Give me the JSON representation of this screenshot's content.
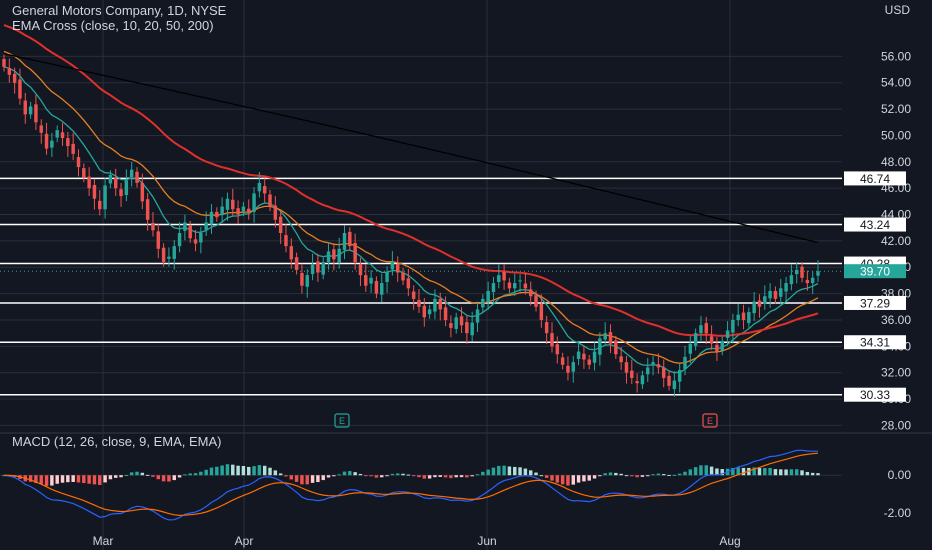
{
  "header": {
    "title": "General Motors Company, 1D, NYSE",
    "indicator": "EMA Cross (close, 10, 20, 50, 200)",
    "currency": "USD"
  },
  "macd_header": "MACD (12, 26, close, 9, EMA, EMA)",
  "colors": {
    "background": "#131722",
    "grid": "#2a2e39",
    "up": "#26a69a",
    "down": "#ef5350",
    "ema10": "#26a69a",
    "ema20": "#e67e22",
    "ema50": "#e0302b",
    "ema200": "#000000",
    "hline": "#ffffff",
    "macd": "#2962ff",
    "signal": "#ff6d00"
  },
  "earnings_markers": [
    {
      "label": "E",
      "date": "Apr 25",
      "color": "#26a69a"
    },
    {
      "label": "E",
      "date": "Jul 26",
      "color": "#ef5350"
    }
  ],
  "chart_data": [
    {
      "type": "candlestick",
      "price_axis": {
        "ylim": [
          27.5,
          58.0
        ],
        "ticks": [
          "28.00",
          "30.00",
          "32.00",
          "34.00",
          "36.00",
          "38.00",
          "40.00",
          "42.00",
          "44.00",
          "46.00",
          "48.00",
          "50.00",
          "52.00",
          "54.00",
          "56.00"
        ]
      },
      "x_axis": {
        "tick_labels": [
          "Mar",
          "Apr",
          "Jun",
          "Aug"
        ]
      },
      "horizontal_levels": [
        {
          "value": 46.74,
          "label": "46.74"
        },
        {
          "value": 43.24,
          "label": "43.24"
        },
        {
          "value": 40.28,
          "label": "40.28"
        },
        {
          "value": 37.29,
          "label": "37.29"
        },
        {
          "value": 34.31,
          "label": "34.31"
        },
        {
          "value": 30.33,
          "label": "30.33"
        }
      ],
      "last_price": {
        "value": 39.7,
        "label": "39.70"
      },
      "close_series": [
        55.2,
        54.6,
        54.0,
        52.8,
        51.6,
        52.2,
        51.0,
        50.2,
        49.0,
        49.6,
        50.4,
        49.8,
        49.2,
        48.6,
        47.6,
        46.8,
        46.0,
        45.2,
        44.4,
        46.2,
        47.0,
        46.0,
        45.4,
        46.6,
        47.4,
        46.4,
        45.0,
        43.6,
        42.8,
        41.4,
        40.4,
        40.8,
        41.6,
        42.6,
        43.4,
        42.2,
        41.8,
        42.6,
        43.4,
        44.2,
        43.8,
        44.6,
        45.2,
        44.4,
        44.0,
        44.6,
        44.2,
        45.6,
        46.4,
        45.6,
        44.6,
        43.6,
        42.6,
        41.6,
        40.6,
        39.8,
        38.6,
        39.4,
        40.2,
        39.6,
        40.4,
        41.2,
        40.6,
        41.4,
        42.6,
        41.6,
        40.4,
        39.4,
        38.6,
        39.2,
        38.0,
        38.8,
        39.6,
        40.4,
        39.6,
        39.0,
        38.4,
        37.6,
        37.0,
        36.2,
        36.8,
        37.6,
        36.8,
        36.0,
        35.4,
        36.2,
        35.6,
        35.0,
        35.8,
        36.8,
        37.6,
        38.2,
        38.8,
        39.4,
        39.0,
        38.4,
        38.8,
        39.0,
        38.4,
        37.8,
        37.0,
        36.0,
        35.0,
        34.0,
        33.4,
        32.6,
        32.0,
        32.8,
        33.6,
        33.0,
        32.6,
        33.6,
        34.6,
        35.0,
        34.2,
        33.4,
        32.8,
        32.0,
        31.6,
        31.2,
        31.8,
        32.4,
        32.8,
        32.4,
        31.6,
        31.0,
        31.4,
        32.2,
        33.2,
        34.2,
        35.0,
        35.6,
        35.0,
        34.2,
        33.6,
        34.4,
        35.2,
        36.0,
        36.4,
        36.0,
        36.6,
        37.4,
        37.0,
        37.8,
        38.2,
        37.6,
        38.4,
        38.8,
        39.4,
        39.8,
        39.2,
        38.8,
        39.2,
        39.7
      ],
      "ema_lines": [
        {
          "name": "10",
          "color": "#26a69a"
        },
        {
          "name": "20",
          "color": "#e67e22"
        },
        {
          "name": "50",
          "color": "#e0302b"
        },
        {
          "name": "200",
          "color": "#000000"
        }
      ]
    },
    {
      "type": "macd",
      "ylim": [
        -2.9,
        1.6
      ],
      "ticks": [
        "0.00",
        "-2.00"
      ],
      "histogram_colors": {
        "up_strong": "#26a69a",
        "up_weak": "#b2dfdb",
        "down_strong": "#ef5350",
        "down_weak": "#ffcdd2"
      }
    }
  ]
}
